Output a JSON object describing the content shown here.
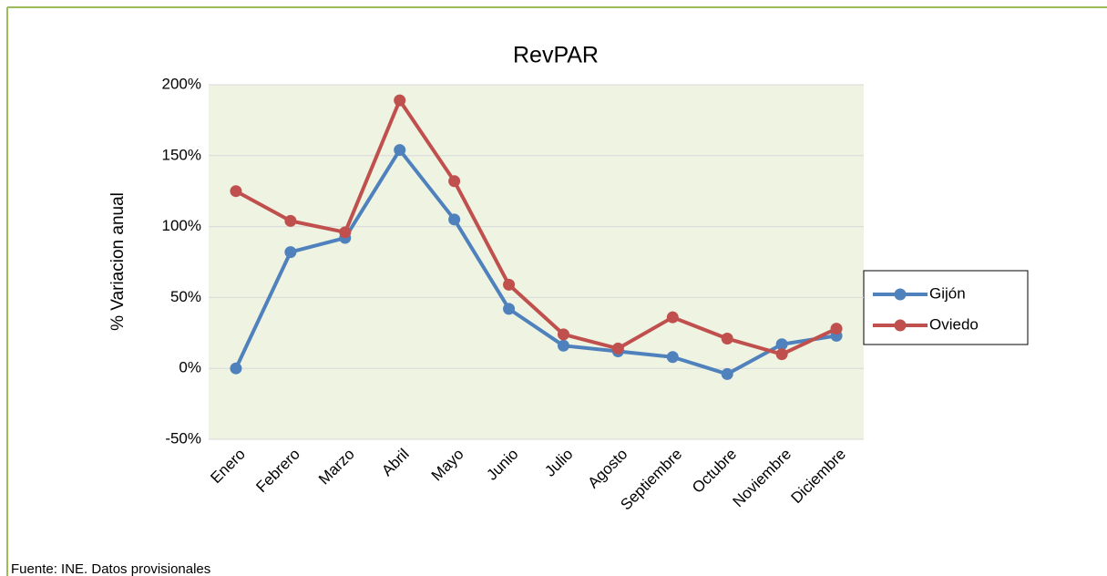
{
  "chart_data": {
    "type": "line",
    "title": "RevPAR",
    "y_label": "% Variacion anual",
    "source": "Fuente: INE. Datos provisionales",
    "categories": [
      "Enero",
      "Febrero",
      "Marzo",
      "Abril",
      "Mayo",
      "Junio",
      "Julio",
      "Agosto",
      "Septiembre",
      "Octubre",
      "Noviembre",
      "Diciembre"
    ],
    "series": [
      {
        "name": "Gijón",
        "color": "#4f81bd",
        "values": [
          0,
          82,
          92,
          154,
          105,
          42,
          16,
          12,
          8,
          -4,
          17,
          23
        ]
      },
      {
        "name": "Oviedo",
        "color": "#c0504d",
        "values": [
          125,
          104,
          96,
          189,
          132,
          59,
          24,
          14,
          36,
          21,
          10,
          28
        ]
      }
    ],
    "ylim": [
      -50,
      200
    ],
    "yticks": [
      {
        "value": -50,
        "label": "-50%"
      },
      {
        "value": 0,
        "label": "0%"
      },
      {
        "value": 50,
        "label": "50%"
      },
      {
        "value": 100,
        "label": "100%"
      },
      {
        "value": 150,
        "label": "150%"
      },
      {
        "value": 200,
        "label": "200%"
      }
    ],
    "grid": true,
    "legend": "right"
  }
}
